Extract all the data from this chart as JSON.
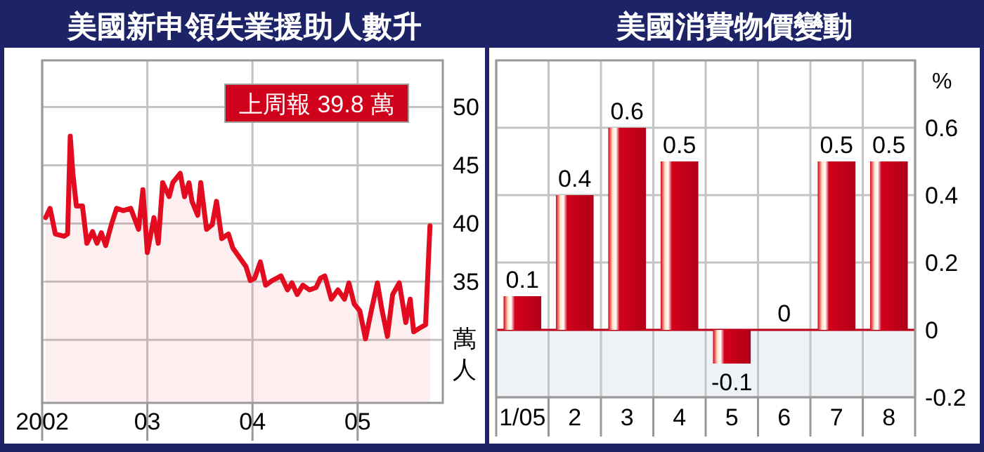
{
  "chart_data": [
    {
      "type": "area",
      "title": "美國新申領失業援助人數升",
      "ylabel": "萬人",
      "x": [
        2002.033,
        2002.075,
        2002.125,
        2002.208,
        2002.242,
        2002.267,
        2002.292,
        2002.325,
        2002.383,
        2002.425,
        2002.479,
        2002.521,
        2002.563,
        2002.604,
        2002.658,
        2002.708,
        2002.771,
        2002.842,
        2002.917,
        2002.958,
        2003.0,
        2003.063,
        2003.104,
        2003.146,
        2003.208,
        2003.242,
        2003.313,
        2003.354,
        2003.396,
        2003.425,
        2003.479,
        2003.508,
        2003.563,
        2003.617,
        2003.658,
        2003.708,
        2003.771,
        2003.813,
        2003.875,
        2003.938,
        2003.979,
        2004.021,
        2004.075,
        2004.125,
        2004.188,
        2004.271,
        2004.333,
        2004.375,
        2004.425,
        2004.479,
        2004.542,
        2004.604,
        2004.646,
        2004.688,
        2004.75,
        2004.813,
        2004.875,
        2004.917,
        2004.967,
        2005.021,
        2005.075,
        2005.125,
        2005.188,
        2005.229,
        2005.283,
        2005.333,
        2005.396,
        2005.458,
        2005.5,
        2005.533,
        2005.604,
        2005.646,
        2005.688
      ],
      "series": [
        {
          "color": "#e30b1f",
          "values": [
            40.5,
            41.3,
            39.1,
            38.9,
            39.1,
            47.5,
            44.3,
            41.5,
            41.5,
            38.3,
            39.3,
            38.3,
            39.2,
            38.1,
            39.9,
            41.3,
            41.1,
            41.3,
            39.5,
            42.9,
            37.5,
            40.5,
            38.3,
            43.5,
            42.3,
            43.5,
            44.3,
            42.3,
            43.5,
            41.9,
            40.7,
            43.5,
            39.5,
            39.9,
            41.9,
            38.7,
            39.1,
            37.9,
            37.1,
            36.3,
            35.1,
            35.3,
            36.7,
            34.7,
            35.1,
            35.5,
            34.3,
            34.9,
            33.9,
            34.7,
            34.3,
            34.5,
            35.3,
            35.5,
            33.5,
            34.3,
            33.5,
            34.9,
            33.1,
            32.5,
            30.1,
            32.3,
            34.9,
            32.7,
            30.3,
            33.9,
            34.9,
            31.5,
            33.5,
            30.7,
            31.1,
            31.3,
            39.8
          ]
        }
      ],
      "xlim": [
        2002,
        2005.81
      ],
      "xticks": [
        {
          "value": 2002,
          "label": "2002"
        },
        {
          "value": 2003,
          "label": "03"
        },
        {
          "value": 2004,
          "label": "04"
        },
        {
          "value": 2005,
          "label": "05"
        }
      ],
      "ylim": [
        24.6,
        54
      ],
      "yticks": [
        {
          "value": 30,
          "label": null
        },
        35,
        40,
        45,
        50
      ],
      "grid": true,
      "annotations": [
        "上周報 39.8 萬"
      ]
    },
    {
      "type": "bar",
      "title": "美國消費物價變動",
      "ylabel": "%",
      "categories": [
        "1/05",
        "2",
        "3",
        "4",
        "5",
        "6",
        "7",
        "8"
      ],
      "values": [
        0.1,
        0.4,
        0.6,
        0.5,
        -0.1,
        0,
        0.5,
        0.5
      ],
      "color": "#d4001a",
      "ylim": [
        -0.2,
        0.8
      ],
      "yticks": [
        -0.2,
        0,
        0.2,
        0.4,
        0.6
      ],
      "grid": true,
      "data_labels": true,
      "bands": [
        {
          "axis": "y",
          "from": -0.2,
          "to": 0,
          "color": "#eef1f5"
        }
      ],
      "ref_lines": [
        {
          "axis": "y",
          "value": 0,
          "color": "#c0001a"
        }
      ]
    }
  ]
}
